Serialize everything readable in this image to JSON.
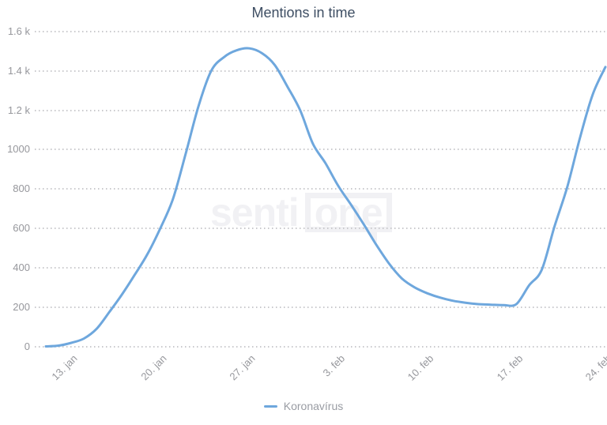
{
  "title": "Mentions in time",
  "watermark": {
    "part1": "senti",
    "part2": "one"
  },
  "legend": {
    "label": "Koronavírus",
    "marker_color": "#6ea7dd"
  },
  "colors": {
    "line": "#6ea7dd",
    "title_text": "#3e4e63",
    "axis_text": "#96979c",
    "grid": "#c9c9cc",
    "watermark": "#f1f1f4",
    "background": "#ffffff"
  },
  "chart_data": {
    "type": "line",
    "title": "Mentions in time",
    "xlabel": "",
    "ylabel": "",
    "ylim": [
      0,
      1600
    ],
    "grid": "horizontal-dotted",
    "legend_position": "bottom-center",
    "x": [
      "11. jan",
      "12. jan",
      "13. jan",
      "14. jan",
      "15. jan",
      "16. jan",
      "17. jan",
      "18. jan",
      "19. jan",
      "20. jan",
      "21. jan",
      "22. jan",
      "23. jan",
      "24. jan",
      "25. jan",
      "26. jan",
      "27. jan",
      "28. jan",
      "29. jan",
      "30. jan",
      "31. jan",
      "1. feb",
      "2. feb",
      "3. feb",
      "4. feb",
      "5. feb",
      "6. feb",
      "7. feb",
      "8. feb",
      "9. feb",
      "10. feb",
      "11. feb",
      "12. feb",
      "13. feb",
      "14. feb",
      "15. feb",
      "16. feb",
      "17. feb",
      "18. feb",
      "19. feb",
      "20. feb",
      "21. feb",
      "22. feb",
      "23. feb",
      "24. feb"
    ],
    "series": [
      {
        "name": "Koronavírus",
        "color": "#6ea7dd",
        "values": [
          0,
          4,
          18,
          40,
          90,
          175,
          265,
          365,
          470,
          600,
          750,
          980,
          1220,
          1400,
          1470,
          1505,
          1515,
          1490,
          1430,
          1320,
          1200,
          1030,
          930,
          815,
          720,
          620,
          515,
          420,
          345,
          300,
          270,
          248,
          232,
          222,
          215,
          212,
          210,
          215,
          310,
          390,
          610,
          810,
          1060,
          1280,
          1420
        ]
      }
    ],
    "x_tick_labels": [
      "13. jan",
      "20. jan",
      "27. jan",
      "3. feb",
      "10. feb",
      "17. feb",
      "24. feb"
    ],
    "x_tick_indices": [
      2,
      9,
      16,
      23,
      30,
      37,
      44
    ],
    "y_ticks": [
      {
        "label": "1.6 k",
        "value": 1600
      },
      {
        "label": "1.4 k",
        "value": 1400
      },
      {
        "label": "1.2 k",
        "value": 1200
      },
      {
        "label": "1000",
        "value": 1000
      },
      {
        "label": "800",
        "value": 800
      },
      {
        "label": "600",
        "value": 600
      },
      {
        "label": "400",
        "value": 400
      },
      {
        "label": "200",
        "value": 200
      },
      {
        "label": "0",
        "value": 0
      }
    ]
  }
}
